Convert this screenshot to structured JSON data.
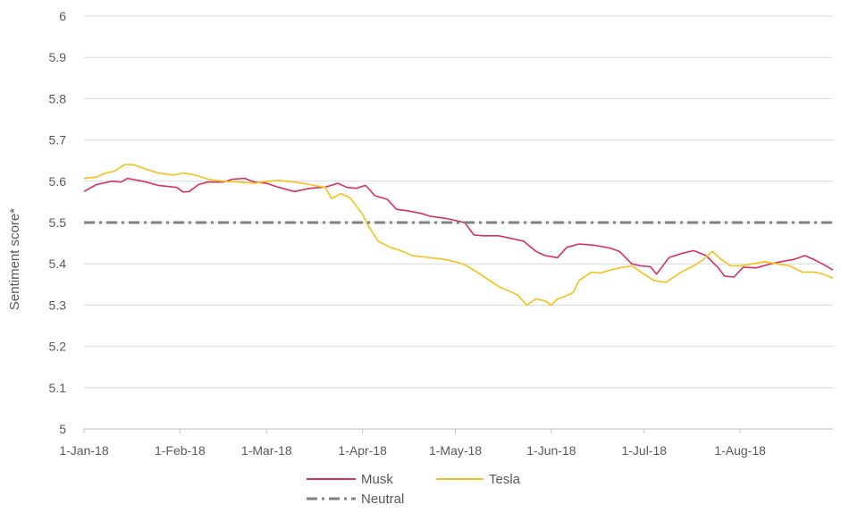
{
  "chart_data": {
    "type": "line",
    "title": "",
    "xlabel": "",
    "ylabel": "Sentiment score*",
    "ylim": [
      5,
      6
    ],
    "yticks": [
      "5",
      "5.1",
      "5.2",
      "5.3",
      "5.4",
      "5.5",
      "5.6",
      "5.7",
      "5.8",
      "5.9",
      "6"
    ],
    "xlim": [
      "2018-01-01",
      "2018-08-31"
    ],
    "xticks": [
      {
        "date": "2018-01-01",
        "label": "1-Jan-18"
      },
      {
        "date": "2018-02-01",
        "label": "1-Feb-18"
      },
      {
        "date": "2018-03-01",
        "label": "1-Mar-18"
      },
      {
        "date": "2018-04-01",
        "label": "1-Apr-18"
      },
      {
        "date": "2018-05-01",
        "label": "1-May-18"
      },
      {
        "date": "2018-06-01",
        "label": "1-Jun-18"
      },
      {
        "date": "2018-07-01",
        "label": "1-Jul-18"
      },
      {
        "date": "2018-08-01",
        "label": "1-Aug-18"
      }
    ],
    "grid": true,
    "legend_position": "bottom",
    "series": [
      {
        "name": "Musk",
        "color": "#d6315e",
        "points": [
          [
            "2018-01-01",
            5.575
          ],
          [
            "2018-01-05",
            5.592
          ],
          [
            "2018-01-10",
            5.6
          ],
          [
            "2018-01-13",
            5.598
          ],
          [
            "2018-01-15",
            5.607
          ],
          [
            "2018-01-20",
            5.6
          ],
          [
            "2018-01-25",
            5.59
          ],
          [
            "2018-01-31",
            5.585
          ],
          [
            "2018-02-02",
            5.574
          ],
          [
            "2018-02-04",
            5.575
          ],
          [
            "2018-02-07",
            5.592
          ],
          [
            "2018-02-10",
            5.598
          ],
          [
            "2018-02-15",
            5.598
          ],
          [
            "2018-02-18",
            5.605
          ],
          [
            "2018-02-22",
            5.607
          ],
          [
            "2018-02-25",
            5.598
          ],
          [
            "2018-03-01",
            5.595
          ],
          [
            "2018-03-05",
            5.585
          ],
          [
            "2018-03-10",
            5.575
          ],
          [
            "2018-03-15",
            5.583
          ],
          [
            "2018-03-20",
            5.586
          ],
          [
            "2018-03-24",
            5.595
          ],
          [
            "2018-03-27",
            5.585
          ],
          [
            "2018-03-30",
            5.583
          ],
          [
            "2018-04-02",
            5.59
          ],
          [
            "2018-04-05",
            5.565
          ],
          [
            "2018-04-09",
            5.556
          ],
          [
            "2018-04-12",
            5.532
          ],
          [
            "2018-04-16",
            5.528
          ],
          [
            "2018-04-20",
            5.522
          ],
          [
            "2018-04-23",
            5.515
          ],
          [
            "2018-04-28",
            5.51
          ],
          [
            "2018-05-04",
            5.5
          ],
          [
            "2018-05-07",
            5.47
          ],
          [
            "2018-05-10",
            5.468
          ],
          [
            "2018-05-15",
            5.468
          ],
          [
            "2018-05-20",
            5.46
          ],
          [
            "2018-05-23",
            5.455
          ],
          [
            "2018-05-27",
            5.43
          ],
          [
            "2018-05-30",
            5.42
          ],
          [
            "2018-06-03",
            5.415
          ],
          [
            "2018-06-06",
            5.44
          ],
          [
            "2018-06-10",
            5.448
          ],
          [
            "2018-06-15",
            5.445
          ],
          [
            "2018-06-20",
            5.438
          ],
          [
            "2018-06-23",
            5.43
          ],
          [
            "2018-06-27",
            5.4
          ],
          [
            "2018-06-30",
            5.395
          ],
          [
            "2018-07-03",
            5.393
          ],
          [
            "2018-07-05",
            5.375
          ],
          [
            "2018-07-09",
            5.415
          ],
          [
            "2018-07-13",
            5.425
          ],
          [
            "2018-07-17",
            5.432
          ],
          [
            "2018-07-21",
            5.42
          ],
          [
            "2018-07-25",
            5.39
          ],
          [
            "2018-07-27",
            5.37
          ],
          [
            "2018-07-30",
            5.368
          ],
          [
            "2018-08-02",
            5.392
          ],
          [
            "2018-08-06",
            5.39
          ],
          [
            "2018-08-10",
            5.398
          ],
          [
            "2018-08-14",
            5.405
          ],
          [
            "2018-08-18",
            5.41
          ],
          [
            "2018-08-22",
            5.42
          ],
          [
            "2018-08-25",
            5.41
          ],
          [
            "2018-08-28",
            5.398
          ],
          [
            "2018-08-31",
            5.385
          ]
        ]
      },
      {
        "name": "Tesla",
        "color": "#f5c018",
        "points": [
          [
            "2018-01-01",
            5.607
          ],
          [
            "2018-01-05",
            5.61
          ],
          [
            "2018-01-08",
            5.62
          ],
          [
            "2018-01-11",
            5.625
          ],
          [
            "2018-01-14",
            5.64
          ],
          [
            "2018-01-17",
            5.64
          ],
          [
            "2018-01-20",
            5.632
          ],
          [
            "2018-01-25",
            5.62
          ],
          [
            "2018-01-30",
            5.615
          ],
          [
            "2018-02-02",
            5.62
          ],
          [
            "2018-02-06",
            5.615
          ],
          [
            "2018-02-10",
            5.605
          ],
          [
            "2018-02-15",
            5.6
          ],
          [
            "2018-02-20",
            5.598
          ],
          [
            "2018-02-25",
            5.595
          ],
          [
            "2018-03-01",
            5.6
          ],
          [
            "2018-03-05",
            5.602
          ],
          [
            "2018-03-10",
            5.598
          ],
          [
            "2018-03-15",
            5.592
          ],
          [
            "2018-03-20",
            5.585
          ],
          [
            "2018-03-22",
            5.558
          ],
          [
            "2018-03-25",
            5.57
          ],
          [
            "2018-03-28",
            5.56
          ],
          [
            "2018-03-30",
            5.54
          ],
          [
            "2018-04-01",
            5.52
          ],
          [
            "2018-04-03",
            5.49
          ],
          [
            "2018-04-06",
            5.455
          ],
          [
            "2018-04-10",
            5.44
          ],
          [
            "2018-04-14",
            5.43
          ],
          [
            "2018-04-17",
            5.42
          ],
          [
            "2018-04-23",
            5.415
          ],
          [
            "2018-04-28",
            5.41
          ],
          [
            "2018-05-01",
            5.405
          ],
          [
            "2018-05-04",
            5.398
          ],
          [
            "2018-05-08",
            5.38
          ],
          [
            "2018-05-12",
            5.36
          ],
          [
            "2018-05-15",
            5.345
          ],
          [
            "2018-05-18",
            5.335
          ],
          [
            "2018-05-21",
            5.325
          ],
          [
            "2018-05-24",
            5.3
          ],
          [
            "2018-05-27",
            5.315
          ],
          [
            "2018-05-30",
            5.31
          ],
          [
            "2018-06-01",
            5.3
          ],
          [
            "2018-06-03",
            5.315
          ],
          [
            "2018-06-05",
            5.32
          ],
          [
            "2018-06-08",
            5.33
          ],
          [
            "2018-06-10",
            5.36
          ],
          [
            "2018-06-14",
            5.38
          ],
          [
            "2018-06-17",
            5.378
          ],
          [
            "2018-06-20",
            5.385
          ],
          [
            "2018-06-23",
            5.39
          ],
          [
            "2018-06-27",
            5.395
          ],
          [
            "2018-07-01",
            5.375
          ],
          [
            "2018-07-04",
            5.36
          ],
          [
            "2018-07-08",
            5.355
          ],
          [
            "2018-07-10",
            5.365
          ],
          [
            "2018-07-13",
            5.38
          ],
          [
            "2018-07-17",
            5.395
          ],
          [
            "2018-07-20",
            5.41
          ],
          [
            "2018-07-23",
            5.43
          ],
          [
            "2018-07-26",
            5.41
          ],
          [
            "2018-07-29",
            5.395
          ],
          [
            "2018-08-01",
            5.395
          ],
          [
            "2018-08-05",
            5.4
          ],
          [
            "2018-08-09",
            5.405
          ],
          [
            "2018-08-13",
            5.4
          ],
          [
            "2018-08-17",
            5.395
          ],
          [
            "2018-08-21",
            5.38
          ],
          [
            "2018-08-25",
            5.38
          ],
          [
            "2018-08-28",
            5.375
          ],
          [
            "2018-08-31",
            5.365
          ]
        ]
      },
      {
        "name": "Neutral",
        "color": "#808080",
        "style": "dash-dot",
        "points": [
          [
            "2018-01-01",
            5.5
          ],
          [
            "2018-08-31",
            5.5
          ]
        ]
      }
    ]
  }
}
